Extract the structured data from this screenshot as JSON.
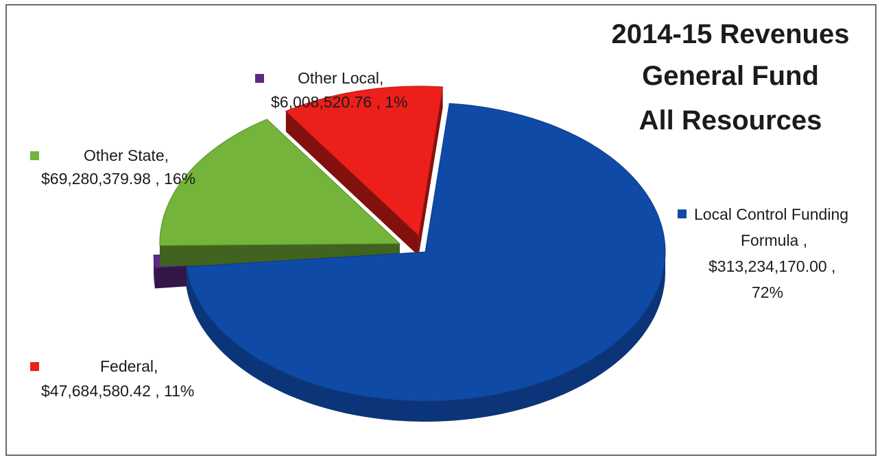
{
  "chart_data": {
    "type": "pie",
    "title_lines": [
      "2014-15 Revenues",
      "General Fund",
      "All Resources"
    ],
    "slices": [
      {
        "name": "Local Control Funding Formula",
        "value": 313234170.0,
        "value_label": "$313,234,170.00",
        "percent_label": "72%",
        "color": "#0f4aa6"
      },
      {
        "name": "Other Local",
        "value": 6008520.76,
        "value_label": "$6,008,520.76",
        "percent_label": "1%",
        "color": "#5b2a82"
      },
      {
        "name": "Other State",
        "value": 69280379.98,
        "value_label": "$69,280,379.98",
        "percent_label": "16%",
        "color": "#74b43a"
      },
      {
        "name": "Federal",
        "value": 47684580.42,
        "value_label": "$47,684,580.42",
        "percent_label": "11%",
        "color": "#ec1f1a"
      }
    ],
    "labels": {
      "lcff_line1": "Local Control Funding",
      "lcff_line2": "Formula ,",
      "lcff_line3": "$313,234,170.00 ,",
      "lcff_line4": "72%",
      "other_local_line1": "Other Local,",
      "other_local_line2": "$6,008,520.76 , 1%",
      "other_state_line1": "Other State,",
      "other_state_line2": "$69,280,379.98 , 16%",
      "federal_line1": "Federal,",
      "federal_line2": "$47,684,580.42 , 11%"
    },
    "style": "3d-exploded",
    "legend": "none"
  }
}
